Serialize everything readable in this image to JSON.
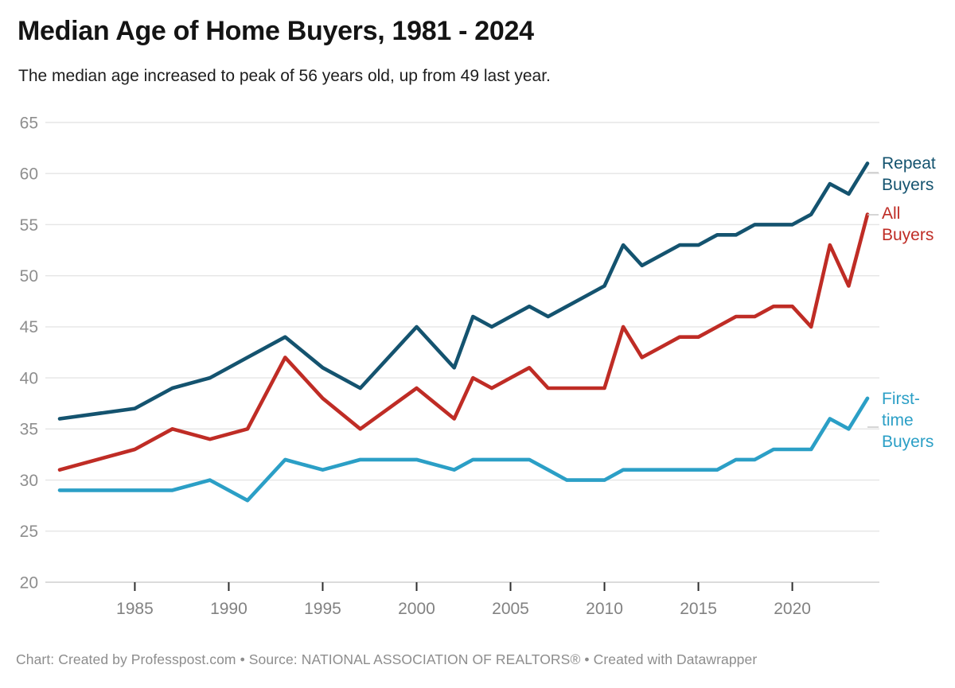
{
  "header": {
    "title": "Median Age of Home Buyers, 1981 - 2024",
    "subtitle": "The median age increased to peak of 56 years old, up from 49 last year."
  },
  "footer": {
    "text": "Chart: Created by Professpost.com  • Source: NATIONAL ASSOCIATION OF REALTORS® • Created with Datawrapper"
  },
  "chart_data": {
    "type": "line",
    "title": "Median Age of Home Buyers, 1981 - 2024",
    "subtitle": "The median age increased to peak of 56 years old, up from 49 last year.",
    "xlabel": "",
    "ylabel": "",
    "xlim": [
      1981,
      2024
    ],
    "ylim": [
      20,
      65
    ],
    "x_ticks": [
      1985,
      1990,
      1995,
      2000,
      2005,
      2010,
      2015,
      2020
    ],
    "y_ticks": [
      20,
      25,
      30,
      35,
      40,
      45,
      50,
      55,
      60,
      65
    ],
    "grid": true,
    "legend_position": "direct-labels-right",
    "axis_label_color": "#8e8e8e",
    "grid_color": "#e5e5e5",
    "series": [
      {
        "name": "Repeat Buyers",
        "label_lines": [
          "Repeat",
          "Buyers"
        ],
        "color": "#14536f",
        "points": [
          [
            1981,
            36
          ],
          [
            1985,
            37
          ],
          [
            1987,
            39
          ],
          [
            1989,
            40
          ],
          [
            1991,
            42
          ],
          [
            1993,
            44
          ],
          [
            1995,
            41
          ],
          [
            1997,
            39
          ],
          [
            2000,
            45
          ],
          [
            2002,
            41
          ],
          [
            2003,
            46
          ],
          [
            2004,
            45
          ],
          [
            2005,
            46
          ],
          [
            2006,
            47
          ],
          [
            2007,
            46
          ],
          [
            2008,
            47
          ],
          [
            2009,
            48
          ],
          [
            2010,
            49
          ],
          [
            2011,
            53
          ],
          [
            2012,
            51
          ],
          [
            2013,
            52
          ],
          [
            2014,
            53
          ],
          [
            2015,
            53
          ],
          [
            2016,
            54
          ],
          [
            2017,
            54
          ],
          [
            2018,
            55
          ],
          [
            2019,
            55
          ],
          [
            2020,
            55
          ],
          [
            2021,
            56
          ],
          [
            2022,
            59
          ],
          [
            2023,
            58
          ],
          [
            2024,
            61
          ]
        ]
      },
      {
        "name": "All Buyers",
        "label_lines": [
          "All",
          "Buyers"
        ],
        "color": "#bf2c25",
        "points": [
          [
            1981,
            31
          ],
          [
            1985,
            33
          ],
          [
            1987,
            35
          ],
          [
            1989,
            34
          ],
          [
            1991,
            35
          ],
          [
            1993,
            42
          ],
          [
            1995,
            38
          ],
          [
            1997,
            35
          ],
          [
            2000,
            39
          ],
          [
            2002,
            36
          ],
          [
            2003,
            40
          ],
          [
            2004,
            39
          ],
          [
            2005,
            40
          ],
          [
            2006,
            41
          ],
          [
            2007,
            39
          ],
          [
            2008,
            39
          ],
          [
            2009,
            39
          ],
          [
            2010,
            39
          ],
          [
            2011,
            45
          ],
          [
            2012,
            42
          ],
          [
            2013,
            43
          ],
          [
            2014,
            44
          ],
          [
            2015,
            44
          ],
          [
            2016,
            45
          ],
          [
            2017,
            46
          ],
          [
            2018,
            46
          ],
          [
            2019,
            47
          ],
          [
            2020,
            47
          ],
          [
            2021,
            45
          ],
          [
            2022,
            53
          ],
          [
            2023,
            49
          ],
          [
            2024,
            56
          ]
        ]
      },
      {
        "name": "First-time Buyers",
        "label_lines": [
          "First-",
          "time",
          "Buyers"
        ],
        "color": "#2b9fc6",
        "points": [
          [
            1981,
            29
          ],
          [
            1985,
            29
          ],
          [
            1987,
            29
          ],
          [
            1989,
            30
          ],
          [
            1991,
            28
          ],
          [
            1993,
            32
          ],
          [
            1995,
            31
          ],
          [
            1997,
            32
          ],
          [
            2000,
            32
          ],
          [
            2002,
            31
          ],
          [
            2003,
            32
          ],
          [
            2004,
            32
          ],
          [
            2005,
            32
          ],
          [
            2006,
            32
          ],
          [
            2007,
            31
          ],
          [
            2008,
            30
          ],
          [
            2009,
            30
          ],
          [
            2010,
            30
          ],
          [
            2011,
            31
          ],
          [
            2012,
            31
          ],
          [
            2013,
            31
          ],
          [
            2014,
            31
          ],
          [
            2015,
            31
          ],
          [
            2016,
            31
          ],
          [
            2017,
            32
          ],
          [
            2018,
            32
          ],
          [
            2019,
            33
          ],
          [
            2020,
            33
          ],
          [
            2021,
            33
          ],
          [
            2022,
            36
          ],
          [
            2023,
            35
          ],
          [
            2024,
            38
          ]
        ]
      }
    ]
  }
}
